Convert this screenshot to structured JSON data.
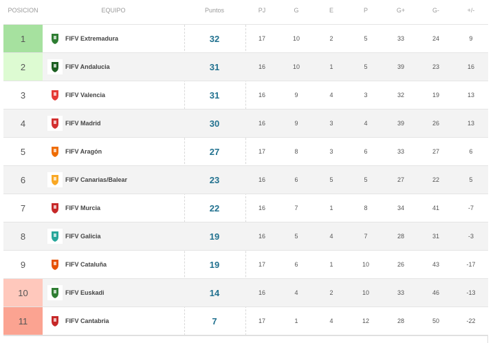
{
  "table": {
    "header": [
      "POSICION",
      "EQUIPO",
      "Puntos",
      "PJ",
      "G",
      "E",
      "P",
      "G+",
      "G-",
      "+/-"
    ],
    "rows": [
      [
        1,
        "FIFV Extremadura",
        32,
        17,
        10,
        2,
        5,
        33,
        24,
        9
      ],
      [
        2,
        "FIFV Andalucia",
        31,
        16,
        10,
        1,
        5,
        39,
        23,
        16
      ],
      [
        3,
        "FIFV Valencia",
        31,
        16,
        9,
        4,
        3,
        32,
        19,
        13
      ],
      [
        4,
        "FIFV Madrid",
        30,
        16,
        9,
        3,
        4,
        39,
        26,
        13
      ],
      [
        5,
        "FIFV Aragón",
        27,
        17,
        8,
        3,
        6,
        33,
        27,
        6
      ],
      [
        6,
        "FIFV Canarias/Balear",
        23,
        16,
        6,
        5,
        5,
        27,
        22,
        5
      ],
      [
        7,
        "FIFV Murcia",
        22,
        16,
        7,
        1,
        8,
        34,
        41,
        -7
      ],
      [
        8,
        "FIFV Galicia",
        19,
        16,
        5,
        4,
        7,
        28,
        31,
        -3
      ],
      [
        9,
        "FIFV Cataluña",
        19,
        17,
        6,
        1,
        10,
        26,
        43,
        -17
      ],
      [
        10,
        "FIFV Euskadi",
        14,
        16,
        4,
        2,
        10,
        33,
        46,
        -13
      ],
      [
        11,
        "FIFV Cantabria",
        7,
        17,
        1,
        4,
        12,
        28,
        50,
        -22
      ]
    ]
  }
}
